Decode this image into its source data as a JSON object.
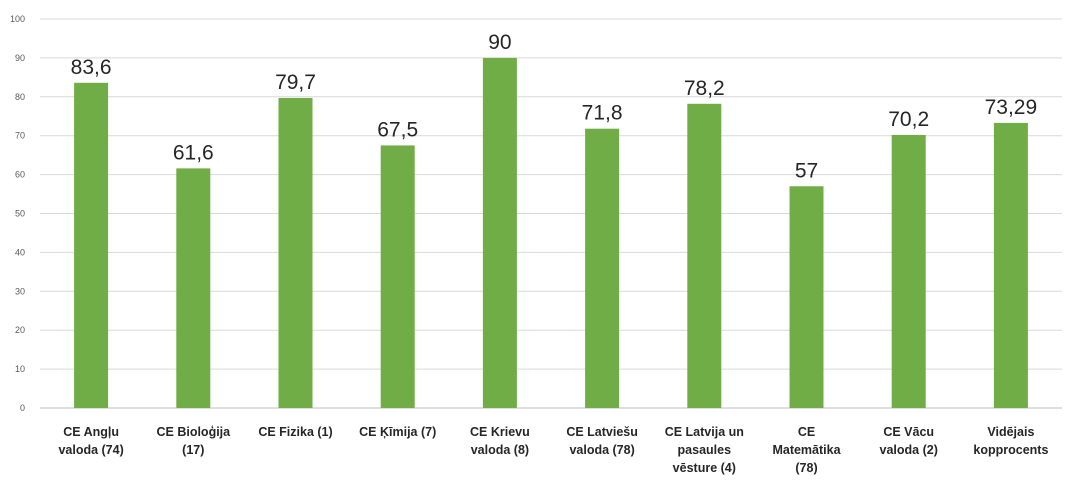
{
  "chart_data": {
    "type": "bar",
    "categories": [
      [
        "CE Angļu",
        "valoda (74)"
      ],
      [
        "CE Bioloģija",
        "(17)"
      ],
      [
        "CE Fizika (1)"
      ],
      [
        "CE Ķīmija (7)"
      ],
      [
        "CE Krievu",
        "valoda (8)"
      ],
      [
        "CE Latviešu",
        "valoda (78)"
      ],
      [
        "CE Latvija un",
        "pasaules",
        "vēsture (4)"
      ],
      [
        "CE",
        "Matemātika",
        "(78)"
      ],
      [
        "CE Vācu",
        "valoda (2)"
      ],
      [
        "Vidējais",
        "kopprocents"
      ]
    ],
    "values": [
      83.6,
      61.6,
      79.7,
      67.5,
      90,
      71.8,
      78.2,
      57,
      70.2,
      73.29
    ],
    "data_labels": [
      "83,6",
      "61,6",
      "79,7",
      "67,5",
      "90",
      "71,8",
      "78,2",
      "57",
      "70,2",
      "73,29"
    ],
    "yticks": [
      "0",
      "10",
      "20",
      "30",
      "40",
      "50",
      "60",
      "70",
      "80",
      "90",
      "100"
    ],
    "ylim": [
      0,
      100
    ],
    "grid": true,
    "bar_color": "#70ad47",
    "legend": "none"
  }
}
